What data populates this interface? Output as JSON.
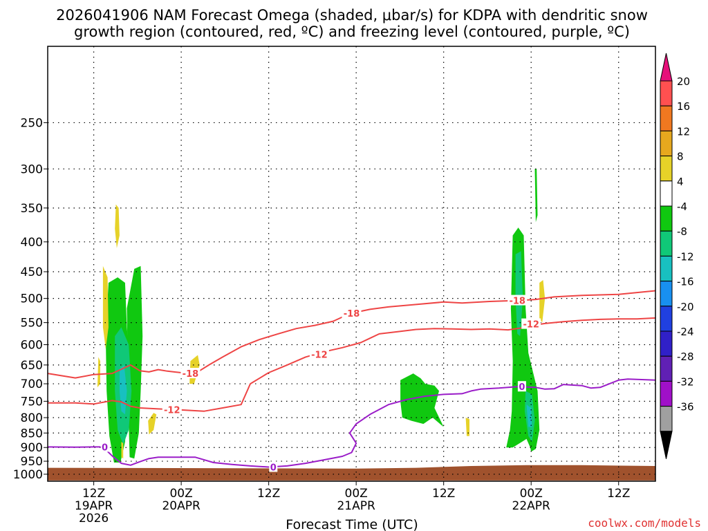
{
  "title_line1": "2026041906 NAM Forecast Omega (shaded, μbar/s) for KDPA with dendritic snow",
  "title_line2": "growth region (contoured, red, ºC) and freezing level (contoured, purple, ºC)",
  "xlabel": "Forecast Time (UTC)",
  "watermark": "coolwx.com/models",
  "colors": {
    "dgz": "#ee4444",
    "freezing": "#9a1cc8",
    "ground": "#a0522d",
    "grid": "#000000"
  },
  "chart_data": {
    "type": "time-height cross section",
    "x_hours": [
      0,
      66
    ],
    "y_levels_hPa": [
      250,
      300,
      350,
      400,
      450,
      500,
      550,
      600,
      650,
      700,
      750,
      800,
      850,
      900,
      950,
      1000
    ],
    "y_tick_labels": [
      "250",
      "300",
      "350",
      "400",
      "450",
      "500",
      "550",
      "600",
      "650",
      "700",
      "750",
      "800",
      "850",
      "900",
      "950",
      "1000"
    ],
    "x_ticks": [
      {
        "hour": 5,
        "lines": [
          "12Z",
          "19APR",
          "2026"
        ]
      },
      {
        "hour": 14.5,
        "lines": [
          "00Z",
          "20APR"
        ]
      },
      {
        "hour": 24,
        "lines": [
          "12Z"
        ]
      },
      {
        "hour": 33.5,
        "lines": [
          "00Z",
          "21APR"
        ]
      },
      {
        "hour": 43,
        "lines": [
          "12Z"
        ]
      },
      {
        "hour": 52.5,
        "lines": [
          "00Z",
          "22APR"
        ]
      },
      {
        "hour": 62,
        "lines": [
          "12Z"
        ]
      }
    ],
    "colorbar": {
      "labels": [
        "20",
        "16",
        "12",
        "8",
        "4",
        "-4",
        "-8",
        "-12",
        "-16",
        "-20",
        "-24",
        "-28",
        "-32",
        "-36"
      ],
      "colors": [
        "#ff5050",
        "#f07820",
        "#e6a81e",
        "#e6d228",
        "#ffffff",
        "#10c810",
        "#10c878",
        "#18c0c0",
        "#1890f0",
        "#2040e0",
        "#3020c8",
        "#6020b4",
        "#a010c8",
        "#a0a0a0"
      ],
      "top_arrow": "#e6107a",
      "bottom_arrow": "#000000"
    },
    "contours": [
      {
        "name": "dgz-minus18",
        "label": "-18",
        "color": "#ee4444",
        "points": [
          [
            0,
            672
          ],
          [
            3,
            684
          ],
          [
            5,
            675
          ],
          [
            7,
            672
          ],
          [
            9,
            650
          ],
          [
            10,
            665
          ],
          [
            11,
            668
          ],
          [
            12,
            662
          ],
          [
            13,
            666
          ],
          [
            14.5,
            670
          ],
          [
            15.5,
            672
          ],
          [
            16.5,
            665
          ],
          [
            17.5,
            650
          ],
          [
            19,
            630
          ],
          [
            21,
            605
          ],
          [
            23,
            588
          ],
          [
            25,
            575
          ],
          [
            27,
            563
          ],
          [
            29,
            556
          ],
          [
            31,
            547
          ],
          [
            32,
            538
          ],
          [
            33,
            530
          ],
          [
            35,
            522
          ],
          [
            37,
            517
          ],
          [
            40,
            512
          ],
          [
            43,
            507
          ],
          [
            45,
            509
          ],
          [
            48,
            506
          ],
          [
            51,
            504
          ],
          [
            53,
            502
          ],
          [
            55,
            497
          ],
          [
            58,
            494
          ],
          [
            62,
            492
          ],
          [
            66,
            485
          ]
        ],
        "label_at": [
          [
            15.5,
            672
          ],
          [
            33,
            530
          ],
          [
            51,
            504
          ]
        ]
      },
      {
        "name": "dgz-minus12",
        "label": "-12",
        "color": "#ee4444",
        "points": [
          [
            0,
            755
          ],
          [
            3,
            755
          ],
          [
            5,
            758
          ],
          [
            7,
            748
          ],
          [
            8,
            752
          ],
          [
            9,
            765
          ],
          [
            10,
            770
          ],
          [
            12,
            773
          ],
          [
            14.5,
            776
          ],
          [
            17,
            780
          ],
          [
            19,
            770
          ],
          [
            21,
            760
          ],
          [
            21.5,
            730
          ],
          [
            22,
            700
          ],
          [
            24,
            670
          ],
          [
            26,
            650
          ],
          [
            28,
            630
          ],
          [
            30,
            617
          ],
          [
            32,
            607
          ],
          [
            34,
            595
          ],
          [
            35,
            585
          ],
          [
            36,
            575
          ],
          [
            38,
            570
          ],
          [
            40,
            565
          ],
          [
            42,
            563
          ],
          [
            44,
            564
          ],
          [
            46,
            565
          ],
          [
            48,
            564
          ],
          [
            50,
            566
          ],
          [
            52,
            560
          ],
          [
            53,
            555
          ],
          [
            54,
            552
          ],
          [
            56,
            548
          ],
          [
            58,
            545
          ],
          [
            60,
            543
          ],
          [
            62,
            542
          ],
          [
            64,
            542
          ],
          [
            66,
            540
          ]
        ],
        "label_at": [
          [
            13.5,
            775
          ],
          [
            29.5,
            623
          ],
          [
            52.5,
            553
          ]
        ]
      },
      {
        "name": "freezing-0c",
        "label": "0",
        "color": "#9a1cc8",
        "points": [
          [
            0,
            898
          ],
          [
            3,
            899
          ],
          [
            5,
            898
          ],
          [
            6,
            898
          ],
          [
            7,
            930
          ],
          [
            8,
            958
          ],
          [
            9,
            965
          ],
          [
            10,
            952
          ],
          [
            11,
            940
          ],
          [
            12,
            935
          ],
          [
            14.5,
            935
          ],
          [
            16,
            935
          ],
          [
            17,
            945
          ],
          [
            18,
            955
          ],
          [
            20,
            962
          ],
          [
            22,
            968
          ],
          [
            24,
            972
          ],
          [
            26,
            968
          ],
          [
            28,
            958
          ],
          [
            30,
            945
          ],
          [
            32,
            932
          ],
          [
            33,
            918
          ],
          [
            33.5,
            885
          ],
          [
            32.8,
            850
          ],
          [
            33.5,
            820
          ],
          [
            35,
            790
          ],
          [
            37,
            760
          ],
          [
            39,
            745
          ],
          [
            41,
            735
          ],
          [
            43,
            730
          ],
          [
            45,
            728
          ],
          [
            46,
            720
          ],
          [
            47,
            715
          ],
          [
            49,
            712
          ],
          [
            51,
            708
          ],
          [
            53,
            710
          ],
          [
            54,
            715
          ],
          [
            55,
            714
          ],
          [
            56,
            702
          ],
          [
            58,
            705
          ],
          [
            59,
            712
          ],
          [
            60,
            710
          ],
          [
            61,
            700
          ],
          [
            62,
            690
          ],
          [
            63,
            687
          ],
          [
            64,
            688
          ],
          [
            66,
            690
          ]
        ],
        "label_at": [
          [
            6.2,
            898
          ],
          [
            24.5,
            972
          ],
          [
            51.5,
            708
          ]
        ]
      }
    ],
    "omega_cells": [
      {
        "name": "cell-green-19apr-1",
        "color": "#10c810",
        "pts": [
          [
            6.6,
            470
          ],
          [
            7.6,
            460
          ],
          [
            8.4,
            470
          ],
          [
            8.6,
            560
          ],
          [
            8.9,
            640
          ],
          [
            8.7,
            760
          ],
          [
            8.4,
            880
          ],
          [
            7.9,
            955
          ],
          [
            7.2,
            955
          ],
          [
            6.7,
            860
          ],
          [
            6.4,
            720
          ],
          [
            6.3,
            580
          ]
        ]
      },
      {
        "name": "cell-green-19apr-2",
        "color": "#10c810",
        "pts": [
          [
            8.6,
            520
          ],
          [
            9.4,
            445
          ],
          [
            10.1,
            440
          ],
          [
            10.3,
            580
          ],
          [
            10.1,
            720
          ],
          [
            9.9,
            850
          ],
          [
            9.4,
            940
          ],
          [
            8.9,
            935
          ],
          [
            8.8,
            820
          ]
        ]
      },
      {
        "name": "cell-teal-19apr",
        "color": "#10c878",
        "pts": [
          [
            7.3,
            580
          ],
          [
            8.0,
            560
          ],
          [
            8.8,
            600
          ],
          [
            9.1,
            720
          ],
          [
            8.8,
            840
          ],
          [
            8.2,
            890
          ],
          [
            7.6,
            840
          ],
          [
            7.3,
            720
          ]
        ]
      },
      {
        "name": "cell-cyan-19apr",
        "color": "#18c0c0",
        "pts": [
          [
            7.8,
            660
          ],
          [
            8.3,
            650
          ],
          [
            8.6,
            720
          ],
          [
            8.4,
            790
          ],
          [
            8.0,
            780
          ],
          [
            7.8,
            720
          ]
        ]
      },
      {
        "name": "cell-yellow-19apr-1",
        "color": "#e6d228",
        "pts": [
          [
            6.0,
            440
          ],
          [
            6.5,
            460
          ],
          [
            6.6,
            560
          ],
          [
            6.3,
            610
          ],
          [
            6.0,
            560
          ]
        ]
      },
      {
        "name": "cell-yellow-19apr-2",
        "color": "#e6d228",
        "pts": [
          [
            7.4,
            345
          ],
          [
            7.7,
            350
          ],
          [
            7.8,
            390
          ],
          [
            7.5,
            410
          ],
          [
            7.3,
            380
          ]
        ]
      },
      {
        "name": "cell-yellow-19apr-3",
        "color": "#e6d228",
        "pts": [
          [
            5.5,
            630
          ],
          [
            5.7,
            640
          ],
          [
            5.7,
            700
          ],
          [
            5.4,
            710
          ]
        ]
      },
      {
        "name": "cell-yellow-20apr-1",
        "color": "#e6d228",
        "pts": [
          [
            10.9,
            810
          ],
          [
            11.5,
            785
          ],
          [
            11.8,
            790
          ],
          [
            11.5,
            840
          ],
          [
            11.0,
            855
          ]
        ]
      },
      {
        "name": "cell-yellow-20apr-2",
        "color": "#e6d228",
        "pts": [
          [
            15.5,
            640
          ],
          [
            16.3,
            625
          ],
          [
            16.5,
            650
          ],
          [
            15.9,
            700
          ],
          [
            15.4,
            700
          ]
        ]
      },
      {
        "name": "cell-yellow-19apr-4",
        "color": "#e6d228",
        "pts": [
          [
            8.0,
            880
          ],
          [
            8.2,
            885
          ],
          [
            8.2,
            940
          ],
          [
            8.0,
            935
          ]
        ]
      },
      {
        "name": "cell-green-21apr",
        "color": "#10c810",
        "pts": [
          [
            38.3,
            690
          ],
          [
            39.7,
            672
          ],
          [
            40.5,
            685
          ],
          [
            41,
            700
          ],
          [
            42.0,
            705
          ],
          [
            42.5,
            720
          ],
          [
            42.0,
            770
          ],
          [
            43.0,
            830
          ],
          [
            42.6,
            820
          ],
          [
            41.8,
            800
          ],
          [
            40.8,
            820
          ],
          [
            39.5,
            810
          ],
          [
            38.5,
            800
          ],
          [
            38.3,
            750
          ]
        ]
      },
      {
        "name": "cell-yellow-21apr",
        "color": "#e6d228",
        "pts": [
          [
            45.4,
            800
          ],
          [
            45.8,
            805
          ],
          [
            45.8,
            860
          ],
          [
            45.5,
            860
          ]
        ]
      },
      {
        "name": "cell-green-22apr-main",
        "color": "#10c810",
        "pts": [
          [
            50.5,
            390
          ],
          [
            51.1,
            378
          ],
          [
            51.7,
            390
          ],
          [
            51.9,
            520
          ],
          [
            52.2,
            620
          ],
          [
            53.2,
            720
          ],
          [
            53.4,
            840
          ],
          [
            53.0,
            905
          ],
          [
            52.5,
            915
          ],
          [
            52.4,
            900
          ],
          [
            52,
            870
          ],
          [
            51.5,
            880
          ],
          [
            50.5,
            900
          ],
          [
            49.8,
            900
          ],
          [
            50.2,
            840
          ],
          [
            50.4,
            780
          ],
          [
            50.5,
            640
          ],
          [
            50.3,
            520
          ]
        ]
      },
      {
        "name": "cell-teal-22apr",
        "color": "#10c878",
        "pts": [
          [
            50.8,
            420
          ],
          [
            51.4,
            415
          ],
          [
            51.6,
            500
          ],
          [
            51.3,
            580
          ],
          [
            51.0,
            575
          ],
          [
            50.8,
            500
          ]
        ]
      },
      {
        "name": "cell-teal-22apr-low",
        "color": "#10c878",
        "pts": [
          [
            51.9,
            720
          ],
          [
            52.6,
            730
          ],
          [
            52.9,
            810
          ],
          [
            52.6,
            880
          ],
          [
            52.2,
            860
          ],
          [
            51.8,
            780
          ]
        ]
      },
      {
        "name": "cell-cyan-22apr",
        "color": "#18c0c0",
        "pts": [
          [
            52.0,
            760
          ],
          [
            52.5,
            770
          ],
          [
            52.6,
            830
          ],
          [
            52.2,
            830
          ]
        ]
      },
      {
        "name": "cell-green-22apr-top",
        "color": "#10c810",
        "pts": [
          [
            52.9,
            300
          ],
          [
            53.1,
            300
          ],
          [
            53.2,
            360
          ],
          [
            53.0,
            370
          ]
        ]
      },
      {
        "name": "cell-yellow-22apr",
        "color": "#e6d228",
        "pts": [
          [
            53.4,
            470
          ],
          [
            53.8,
            465
          ],
          [
            54.0,
            500
          ],
          [
            53.7,
            550
          ],
          [
            53.4,
            540
          ]
        ]
      }
    ],
    "ground": {
      "name": "terrain",
      "color": "#a0522d",
      "pts": [
        [
          0,
          975
        ],
        [
          33.5,
          978
        ],
        [
          40,
          975
        ],
        [
          46,
          968
        ],
        [
          52,
          965
        ],
        [
          58,
          965
        ],
        [
          66,
          968
        ],
        [
          66,
          1025
        ],
        [
          0,
          1025
        ]
      ]
    }
  }
}
